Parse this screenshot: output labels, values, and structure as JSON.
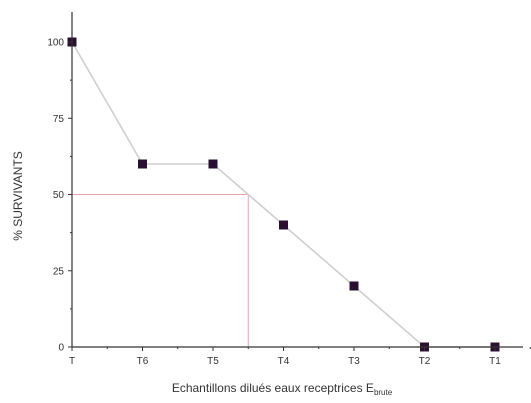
{
  "chart_data": {
    "type": "line",
    "title": "",
    "xlabel": "Echantillons dilués eaux receptrices E",
    "xlabel_subscript": "brute",
    "ylabel": "% SURVIVANTS",
    "categories": [
      "T",
      "T6",
      "T5",
      "T4",
      "T3",
      "T2",
      "T1"
    ],
    "series": [
      {
        "values": [
          100,
          60,
          60,
          40,
          20,
          0,
          0
        ]
      }
    ],
    "ylim": [
      0,
      100
    ],
    "y_ticks": [
      0,
      25,
      50,
      75,
      100
    ],
    "y_tick_labels": [
      "0",
      "25",
      "50",
      "75",
      "100"
    ],
    "reference": {
      "y": 50,
      "x_position": 2.5
    },
    "grid": false,
    "legend": "none",
    "colors": {
      "line": "#cfcfcf",
      "marker": "#2a1030",
      "reference": "#e8a0a8",
      "axis": "#333333"
    }
  }
}
